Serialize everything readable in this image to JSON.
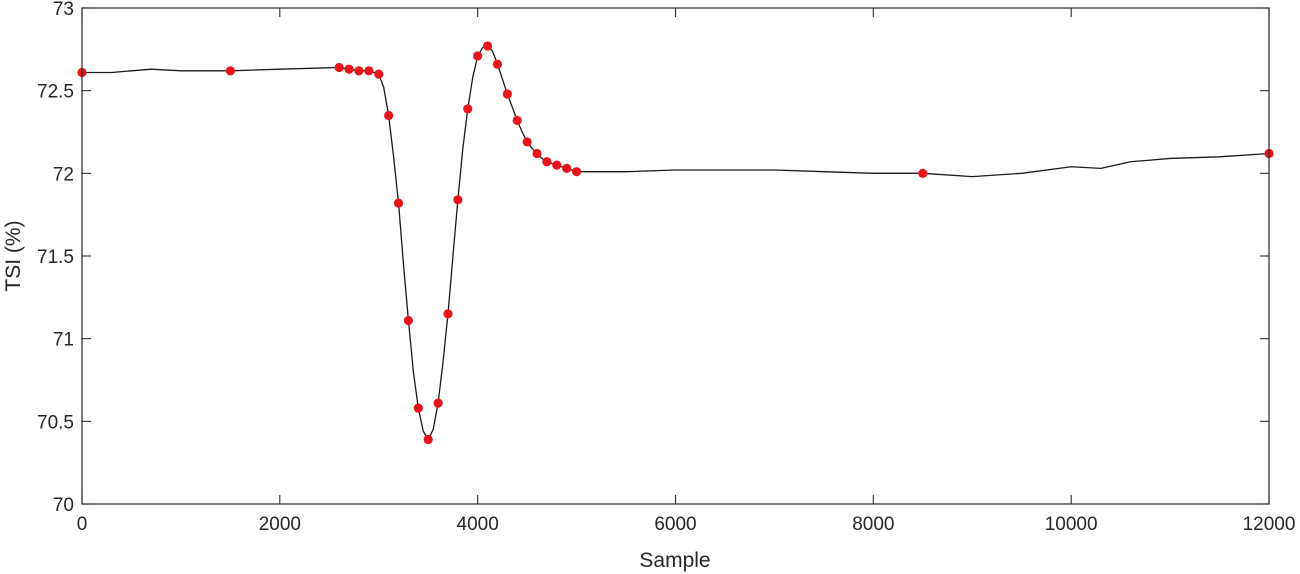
{
  "chart_data": {
    "type": "line",
    "title": "",
    "xlabel": "Sample",
    "ylabel": "TSI (%)",
    "xlim": [
      0,
      12000
    ],
    "ylim": [
      70,
      73
    ],
    "xticks": [
      0,
      2000,
      4000,
      6000,
      8000,
      10000,
      12000
    ],
    "xtick_labels": [
      "0",
      "2000",
      "4000",
      "6000",
      "8000",
      "10000",
      "12000"
    ],
    "yticks": [
      70,
      70.5,
      71,
      71.5,
      72,
      72.5,
      73
    ],
    "ytick_labels": [
      "70",
      "70.5",
      "71",
      "71.5",
      "72",
      "72.5",
      "73"
    ],
    "grid": false,
    "colors": {
      "line": "#1a1a1a",
      "markers": "#e8141b",
      "axes": "#262626"
    },
    "series": [
      {
        "style": "line",
        "x": [
          0,
          300,
          700,
          1000,
          1500,
          2000,
          2600,
          2700,
          2800,
          2900,
          3000,
          3050,
          3100,
          3150,
          3200,
          3250,
          3300,
          3350,
          3400,
          3450,
          3500,
          3550,
          3600,
          3650,
          3700,
          3750,
          3800,
          3850,
          3900,
          3950,
          4000,
          4050,
          4100,
          4150,
          4200,
          4250,
          4300,
          4350,
          4400,
          4450,
          4500,
          4550,
          4600,
          4650,
          4700,
          4800,
          4900,
          5000,
          5500,
          6000,
          6500,
          7000,
          7500,
          8000,
          8500,
          9000,
          9500,
          10000,
          10300,
          10600,
          11000,
          11500,
          12000
        ],
        "y": [
          72.61,
          72.61,
          72.63,
          72.62,
          72.62,
          72.63,
          72.64,
          72.63,
          72.62,
          72.62,
          72.6,
          72.52,
          72.35,
          72.1,
          71.82,
          71.45,
          71.11,
          70.8,
          70.58,
          70.44,
          70.39,
          70.45,
          70.61,
          70.86,
          71.15,
          71.5,
          71.84,
          72.15,
          72.39,
          72.58,
          72.71,
          72.76,
          72.77,
          72.74,
          72.66,
          72.57,
          72.48,
          72.4,
          72.32,
          72.25,
          72.19,
          72.15,
          72.12,
          72.09,
          72.07,
          72.05,
          72.03,
          72.01,
          72.01,
          72.02,
          72.02,
          72.02,
          72.01,
          72.0,
          72.0,
          71.98,
          72.0,
          72.04,
          72.03,
          72.07,
          72.09,
          72.1,
          72.12
        ]
      },
      {
        "style": "markers",
        "x": [
          0,
          1500,
          2600,
          2700,
          2800,
          2900,
          3000,
          3100,
          3200,
          3300,
          3400,
          3500,
          3600,
          3700,
          3800,
          3900,
          4000,
          4100,
          4200,
          4300,
          4400,
          4500,
          4600,
          4700,
          4800,
          4900,
          5000,
          8500,
          12000
        ],
        "y": [
          72.61,
          72.62,
          72.64,
          72.63,
          72.62,
          72.62,
          72.6,
          72.35,
          71.82,
          71.11,
          70.58,
          70.39,
          70.61,
          71.15,
          71.84,
          72.39,
          72.71,
          72.77,
          72.66,
          72.48,
          72.32,
          72.19,
          72.12,
          72.07,
          72.05,
          72.03,
          72.01,
          72.0,
          72.12
        ]
      }
    ]
  }
}
